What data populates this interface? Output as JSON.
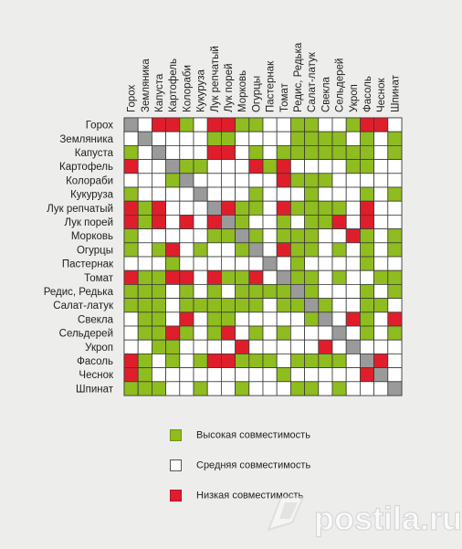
{
  "chart_data": {
    "type": "heatmap",
    "columns": [
      "Горох",
      "Земляника",
      "Капуста",
      "Картофель",
      "Колораби",
      "Кукуруза",
      "Лук репчатый",
      "Лук порей",
      "Морковь",
      "Огурцы",
      "Пастернак",
      "Томат",
      "Редис, Редька",
      "Салат-латук",
      "Свекла",
      "Сельдерей",
      "Укроп",
      "Фасоль",
      "Чеснок",
      "Шпинат"
    ],
    "rows": [
      "Горох",
      "Земляника",
      "Капуста",
      "Картофель",
      "Колораби",
      "Кукуруза",
      "Лук репчатый",
      "Лук порей",
      "Морковь",
      "Огурцы",
      "Пастернак",
      "Томат",
      "Редис, Редька",
      "Салат-латук",
      "Свекла",
      "Сельдерей",
      "Укроп",
      "Фасоль",
      "Чеснок",
      "Шпинат"
    ],
    "value_key": {
      "H": "high",
      "M": "medium",
      "L": "low",
      "X": "same"
    },
    "matrix": [
      "XMLLHMLLHHMMHHMMHLLM",
      "MXMMMMHHMMMMHHHHMHMH",
      "HMXMMMLLMHMHHHHHHHMH",
      "LMMXHHMMMLHLMMMMHHMM",
      "MMMHXMMMMMMLHHHMMMMM",
      "HMMMMXMMMHMMMHMMMHMH",
      "LHLMMMXLHHMLHHHHMLMM",
      "LHLMLMLXHMMHMHHLMLMM",
      "HMMMMMHHXHMHHHMMLHMH",
      "HMHLMHMMHXMLHHMHMHMH",
      "MMMHMMMMMMXMHMMMMHMM",
      "LHHLLMLHHLMXHHMHMMHH",
      "HHHMHMHMHHHHXHMMMHMH",
      "HHHMHHHHHHMHHXHMMHHM",
      "MHHMLMHHMMMMMHXMLHML",
      "MHHLHMHLMHMHMMMXMHMH",
      "MMHHMMMMLMMMMMLMXMMM",
      "LHMHMHLLHHHMHHHHMXLM",
      "LHMMMMMMMMMHMMMMMLXM",
      "HHHMMHMMHMMMHHMHMMMX"
    ],
    "colors": {
      "H": "#8fbc1f",
      "M": "#ffffff",
      "L": "#e01e2b",
      "X": "#9a9a9a"
    },
    "legend_position": "bottom"
  },
  "legend": [
    {
      "key": "H",
      "label": "Высокая совместимость"
    },
    {
      "key": "M",
      "label": "Средняя совместимость"
    },
    {
      "key": "L",
      "label": "Низкая совместимость"
    }
  ],
  "watermark": {
    "text": "postila.ru"
  }
}
